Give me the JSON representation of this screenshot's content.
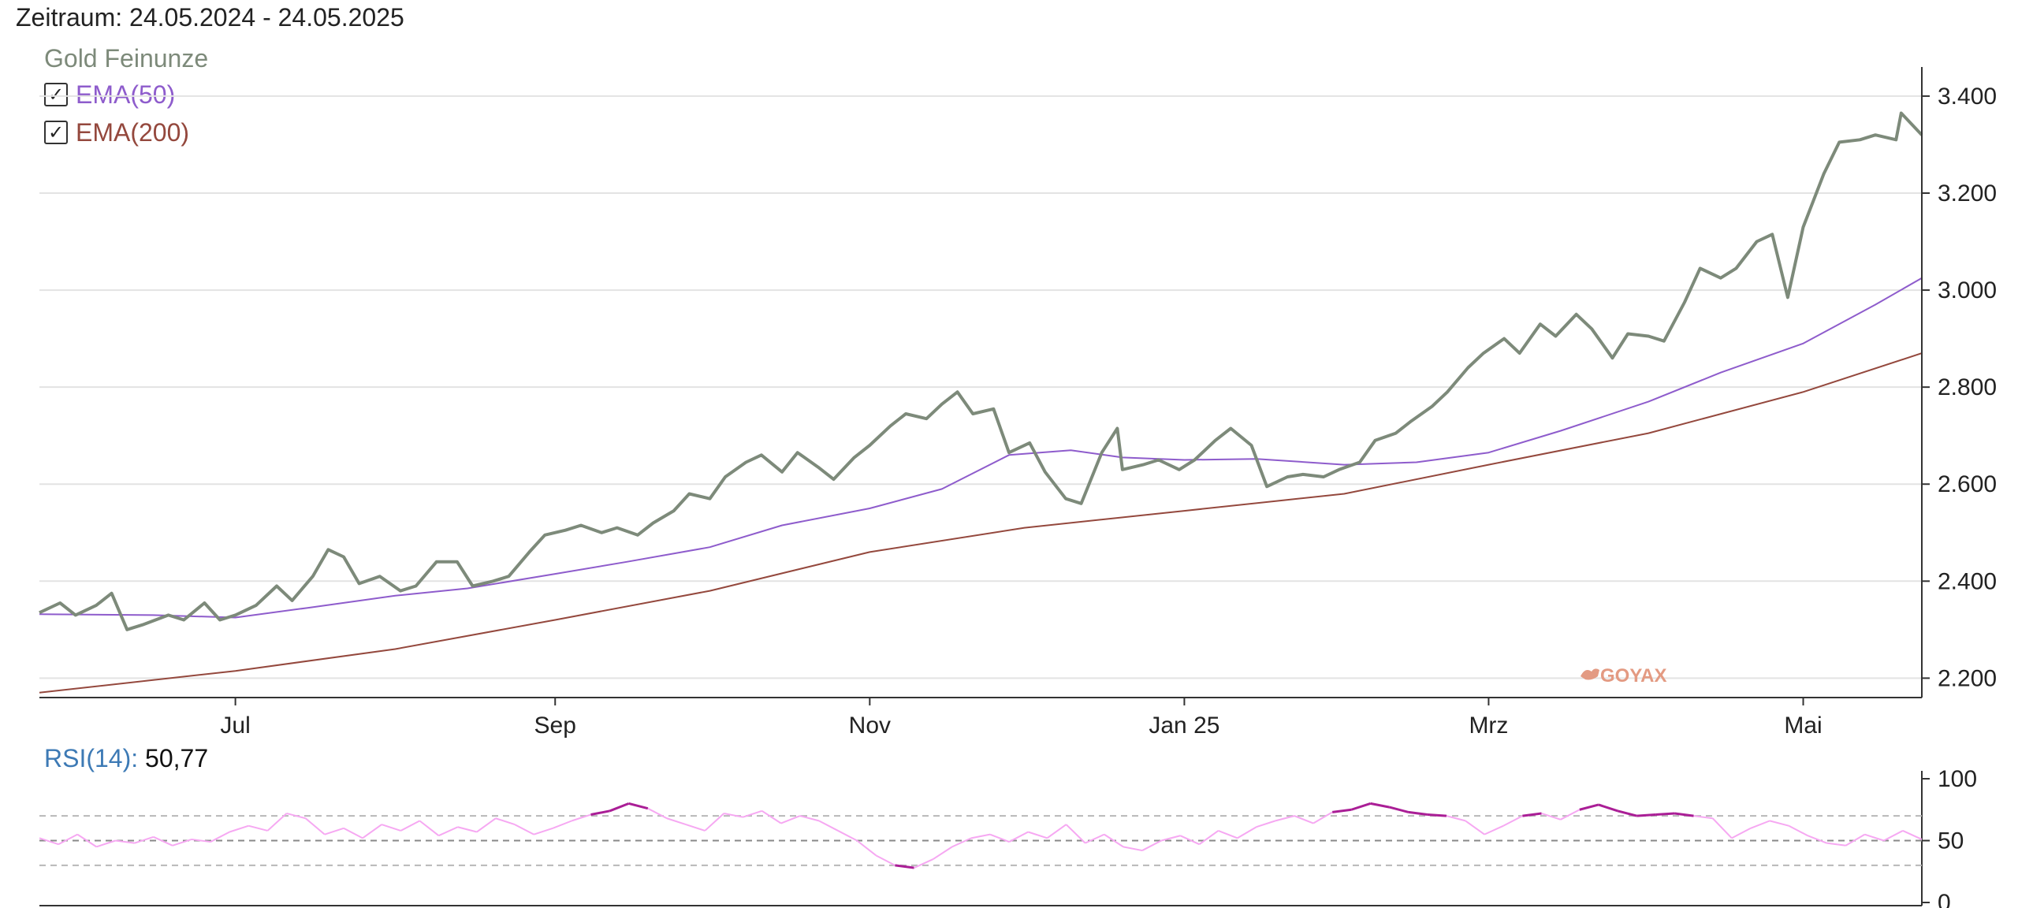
{
  "header": {
    "period": "Zeitraum: 24.05.2024 - 24.05.2025"
  },
  "legend": {
    "series": "Gold Feinunze",
    "ema50": {
      "label": "EMA(50)",
      "checked": true
    },
    "ema200": {
      "label": "EMA(200)",
      "checked": true
    }
  },
  "watermark": "GOYAX",
  "rsi": {
    "label": "RSI(14):",
    "value": "50,77"
  },
  "colors": {
    "price": "#7d8a7a",
    "ema50": "#8e5ccc",
    "ema200": "#94483d",
    "rsi": "#f6a8f2",
    "rsi_extreme": "#aa1e96"
  },
  "chart_data": [
    {
      "type": "line",
      "x_axis": {
        "type": "time",
        "min": "2024-05-24",
        "max": "2025-05-24",
        "ticks": [
          {
            "date": "2024-07-01",
            "label": "Jul"
          },
          {
            "date": "2024-09-01",
            "label": "Sep"
          },
          {
            "date": "2024-11-01",
            "label": "Nov"
          },
          {
            "date": "2025-01-01",
            "label": "Jan 25"
          },
          {
            "date": "2025-03-01",
            "label": "Mrz"
          },
          {
            "date": "2025-05-01",
            "label": "Mai"
          }
        ]
      },
      "y_axis": {
        "min": 2160,
        "max": 3460,
        "position": "right",
        "ticks": [
          {
            "value": 2200,
            "label": "2.200"
          },
          {
            "value": 2400,
            "label": "2.400"
          },
          {
            "value": 2600,
            "label": "2.600"
          },
          {
            "value": 2800,
            "label": "2.800"
          },
          {
            "value": 3000,
            "label": "3.000"
          },
          {
            "value": 3200,
            "label": "3.200"
          },
          {
            "value": 3400,
            "label": "3.400"
          }
        ]
      },
      "grid": true,
      "series": [
        {
          "name": "Gold Feinunze",
          "points": [
            [
              "2024-05-24",
              2335
            ],
            [
              "2024-05-28",
              2355
            ],
            [
              "2024-05-31",
              2330
            ],
            [
              "2024-06-04",
              2350
            ],
            [
              "2024-06-07",
              2375
            ],
            [
              "2024-06-10",
              2300
            ],
            [
              "2024-06-13",
              2310
            ],
            [
              "2024-06-18",
              2330
            ],
            [
              "2024-06-21",
              2320
            ],
            [
              "2024-06-25",
              2355
            ],
            [
              "2024-06-28",
              2320
            ],
            [
              "2024-07-01",
              2330
            ],
            [
              "2024-07-05",
              2350
            ],
            [
              "2024-07-09",
              2390
            ],
            [
              "2024-07-12",
              2360
            ],
            [
              "2024-07-16",
              2410
            ],
            [
              "2024-07-19",
              2465
            ],
            [
              "2024-07-22",
              2450
            ],
            [
              "2024-07-25",
              2395
            ],
            [
              "2024-07-29",
              2410
            ],
            [
              "2024-08-02",
              2380
            ],
            [
              "2024-08-05",
              2390
            ],
            [
              "2024-08-09",
              2440
            ],
            [
              "2024-08-13",
              2440
            ],
            [
              "2024-08-16",
              2390
            ],
            [
              "2024-08-20",
              2400
            ],
            [
              "2024-08-23",
              2410
            ],
            [
              "2024-08-27",
              2460
            ],
            [
              "2024-08-30",
              2495
            ],
            [
              "2024-09-03",
              2505
            ],
            [
              "2024-09-06",
              2515
            ],
            [
              "2024-09-10",
              2500
            ],
            [
              "2024-09-13",
              2510
            ],
            [
              "2024-09-17",
              2495
            ],
            [
              "2024-09-20",
              2520
            ],
            [
              "2024-09-24",
              2545
            ],
            [
              "2024-09-27",
              2580
            ],
            [
              "2024-10-01",
              2570
            ],
            [
              "2024-10-04",
              2615
            ],
            [
              "2024-10-08",
              2645
            ],
            [
              "2024-10-11",
              2660
            ],
            [
              "2024-10-15",
              2625
            ],
            [
              "2024-10-18",
              2665
            ],
            [
              "2024-10-22",
              2635
            ],
            [
              "2024-10-25",
              2610
            ],
            [
              "2024-10-29",
              2655
            ],
            [
              "2024-11-01",
              2680
            ],
            [
              "2024-11-05",
              2720
            ],
            [
              "2024-11-08",
              2745
            ],
            [
              "2024-11-12",
              2735
            ],
            [
              "2024-11-15",
              2765
            ],
            [
              "2024-11-18",
              2790
            ],
            [
              "2024-11-21",
              2745
            ],
            [
              "2024-11-25",
              2755
            ],
            [
              "2024-11-28",
              2665
            ],
            [
              "2024-12-02",
              2685
            ],
            [
              "2024-12-05",
              2625
            ],
            [
              "2024-12-09",
              2570
            ],
            [
              "2024-12-12",
              2560
            ],
            [
              "2024-12-16",
              2665
            ],
            [
              "2024-12-19",
              2715
            ],
            [
              "2024-12-20",
              2630
            ],
            [
              "2024-12-24",
              2640
            ],
            [
              "2024-12-27",
              2650
            ],
            [
              "2024-12-31",
              2630
            ],
            [
              "2025-01-03",
              2650
            ],
            [
              "2025-01-07",
              2690
            ],
            [
              "2025-01-10",
              2715
            ],
            [
              "2025-01-14",
              2680
            ],
            [
              "2025-01-17",
              2595
            ],
            [
              "2025-01-21",
              2615
            ],
            [
              "2025-01-24",
              2620
            ],
            [
              "2025-01-28",
              2615
            ],
            [
              "2025-01-31",
              2630
            ],
            [
              "2025-02-04",
              2645
            ],
            [
              "2025-02-07",
              2690
            ],
            [
              "2025-02-11",
              2705
            ],
            [
              "2025-02-14",
              2730
            ],
            [
              "2025-02-18",
              2760
            ],
            [
              "2025-02-21",
              2790
            ],
            [
              "2025-02-25",
              2840
            ],
            [
              "2025-02-28",
              2870
            ],
            [
              "2025-03-04",
              2900
            ],
            [
              "2025-03-07",
              2870
            ],
            [
              "2025-03-11",
              2930
            ],
            [
              "2025-03-14",
              2905
            ],
            [
              "2025-03-18",
              2950
            ],
            [
              "2025-03-21",
              2920
            ],
            [
              "2025-03-25",
              2860
            ],
            [
              "2025-03-28",
              2910
            ],
            [
              "2025-04-01",
              2905
            ],
            [
              "2025-04-04",
              2895
            ],
            [
              "2025-04-08",
              2975
            ],
            [
              "2025-04-11",
              3045
            ],
            [
              "2025-04-15",
              3025
            ],
            [
              "2025-04-18",
              3045
            ],
            [
              "2025-04-22",
              3100
            ],
            [
              "2025-04-25",
              3115
            ],
            [
              "2025-04-28",
              2985
            ],
            [
              "2025-05-01",
              3130
            ],
            [
              "2025-05-05",
              3240
            ],
            [
              "2025-05-08",
              3305
            ],
            [
              "2025-05-12",
              3310
            ],
            [
              "2025-05-15",
              3320
            ],
            [
              "2025-05-19",
              3310
            ],
            [
              "2025-05-20",
              3365
            ],
            [
              "2025-05-24",
              3320
            ]
          ]
        },
        {
          "name": "EMA(50)",
          "points": [
            [
              "2024-05-24",
              2332
            ],
            [
              "2024-06-15",
              2330
            ],
            [
              "2024-07-01",
              2325
            ],
            [
              "2024-07-15",
              2345
            ],
            [
              "2024-08-01",
              2370
            ],
            [
              "2024-08-15",
              2385
            ],
            [
              "2024-09-01",
              2415
            ],
            [
              "2024-09-15",
              2440
            ],
            [
              "2024-10-01",
              2470
            ],
            [
              "2024-10-15",
              2515
            ],
            [
              "2024-11-01",
              2550
            ],
            [
              "2024-11-15",
              2590
            ],
            [
              "2024-11-28",
              2660
            ],
            [
              "2024-12-10",
              2670
            ],
            [
              "2024-12-20",
              2655
            ],
            [
              "2025-01-01",
              2650
            ],
            [
              "2025-01-15",
              2652
            ],
            [
              "2025-02-01",
              2640
            ],
            [
              "2025-02-15",
              2645
            ],
            [
              "2025-03-01",
              2665
            ],
            [
              "2025-03-15",
              2710
            ],
            [
              "2025-04-01",
              2770
            ],
            [
              "2025-04-15",
              2830
            ],
            [
              "2025-05-01",
              2890
            ],
            [
              "2025-05-15",
              2970
            ],
            [
              "2025-05-24",
              3025
            ]
          ]
        },
        {
          "name": "EMA(200)",
          "points": [
            [
              "2024-05-24",
              2170
            ],
            [
              "2024-07-01",
              2215
            ],
            [
              "2024-08-01",
              2260
            ],
            [
              "2024-09-01",
              2320
            ],
            [
              "2024-10-01",
              2380
            ],
            [
              "2024-11-01",
              2460
            ],
            [
              "2024-12-01",
              2510
            ],
            [
              "2025-01-01",
              2545
            ],
            [
              "2025-02-01",
              2580
            ],
            [
              "2025-03-01",
              2640
            ],
            [
              "2025-04-01",
              2705
            ],
            [
              "2025-05-01",
              2790
            ],
            [
              "2025-05-24",
              2870
            ]
          ]
        }
      ]
    },
    {
      "type": "line",
      "label": "RSI(14)",
      "y_axis": {
        "min": 0,
        "max": 100,
        "ticks": [
          {
            "value": 0,
            "label": "0"
          },
          {
            "value": 50,
            "label": "50"
          },
          {
            "value": 100,
            "label": "100"
          }
        ]
      },
      "reference_lines": [
        30,
        50,
        70
      ],
      "series": [
        {
          "name": "RSI(14)",
          "values": [
            52,
            47,
            55,
            45,
            50,
            48,
            53,
            46,
            51,
            49,
            57,
            62,
            58,
            72,
            68,
            55,
            60,
            52,
            63,
            58,
            66,
            54,
            61,
            57,
            68,
            63,
            55,
            60,
            66,
            71,
            74,
            80,
            76,
            68,
            63,
            58,
            72,
            69,
            74,
            64,
            70,
            66,
            58,
            50,
            38,
            30,
            28,
            35,
            45,
            52,
            55,
            49,
            57,
            52,
            63,
            48,
            55,
            45,
            42,
            50,
            54,
            47,
            58,
            52,
            61,
            66,
            70,
            64,
            73,
            75,
            80,
            77,
            73,
            71,
            70,
            66,
            55,
            62,
            70,
            72,
            67,
            75,
            79,
            74,
            70,
            71,
            72,
            70,
            68,
            52,
            60,
            66,
            62,
            54,
            48,
            46,
            55,
            50,
            58,
            51
          ]
        }
      ]
    }
  ]
}
